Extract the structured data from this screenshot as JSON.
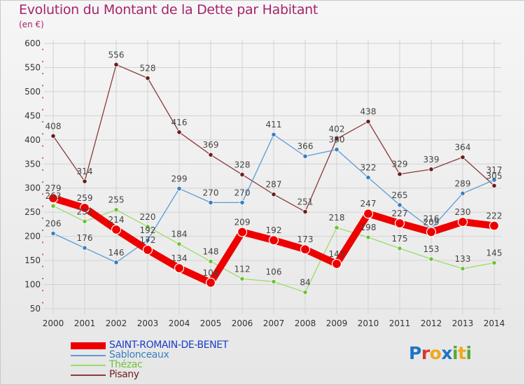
{
  "header": {
    "title": "Evolution du Montant de la Dette par Habitant",
    "subtitle": "(en €)"
  },
  "logo": {
    "letters": [
      "P",
      "r",
      "o",
      "x",
      "i",
      "t",
      "i"
    ],
    "colors": [
      "#1e73c8",
      "#d6382c",
      "#f0a81e",
      "#1e73c8",
      "#58a83c",
      "#f0a81e",
      "#58a83c"
    ]
  },
  "colors": {
    "grid": "#d2d2d2",
    "axis_text": "#333333",
    "value_text": "#444444",
    "title": "#a5246b",
    "tick_mark": "#cc3333"
  },
  "chart_data": {
    "type": "line",
    "title": "Evolution du Montant de la Dette par Habitant",
    "subtitle": "(en €)",
    "xlabel": "",
    "ylabel": "",
    "x": [
      "2000",
      "2001",
      "2002",
      "2003",
      "2004",
      "2005",
      "2006",
      "2007",
      "2008",
      "2009",
      "2010",
      "2011",
      "2012",
      "2013",
      "2014"
    ],
    "ylim": [
      50,
      600
    ],
    "yticks": [
      50,
      100,
      150,
      200,
      250,
      300,
      350,
      400,
      450,
      500,
      550,
      600
    ],
    "grid": true,
    "legend_position": "bottom-left",
    "series": [
      {
        "name": "SAINT-ROMAIN-DE-BENET",
        "color": "#ee0000",
        "marker_color": "#ee0000",
        "text_color": "#1a3cc8",
        "thick": true,
        "values": [
          279,
          259,
          214,
          172,
          134,
          104,
          209,
          192,
          173,
          143,
          247,
          227,
          209,
          230,
          222
        ]
      },
      {
        "name": "Sablonceaux",
        "color": "#5b9bd5",
        "marker_color": "#3a7fc0",
        "text_color": "#3a7fc0",
        "thick": false,
        "values": [
          206,
          176,
          146,
          192,
          299,
          270,
          270,
          411,
          366,
          380,
          322,
          265,
          216,
          289,
          317
        ]
      },
      {
        "name": "Thézac",
        "color": "#99dd66",
        "marker_color": "#6ec23c",
        "text_color": "#6ec23c",
        "thick": false,
        "values": [
          263,
          231,
          255,
          220,
          184,
          148,
          112,
          106,
          84,
          218,
          198,
          175,
          153,
          133,
          145
        ]
      },
      {
        "name": "Pisany",
        "color": "#8b3a3a",
        "marker_color": "#6b1e1e",
        "text_color": "#6b1e1e",
        "thick": false,
        "values": [
          408,
          314,
          556,
          528,
          416,
          369,
          328,
          287,
          251,
          402,
          438,
          329,
          339,
          364,
          305
        ]
      }
    ]
  }
}
